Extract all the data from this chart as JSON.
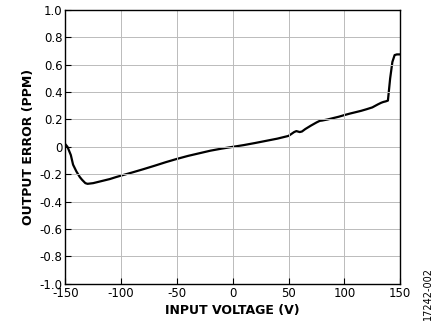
{
  "x": [
    -150,
    -148,
    -145,
    -143,
    -140,
    -137,
    -135,
    -132,
    -130,
    -128,
    -125,
    -120,
    -115,
    -110,
    -105,
    -100,
    -90,
    -80,
    -70,
    -60,
    -50,
    -40,
    -30,
    -20,
    -10,
    0,
    10,
    20,
    30,
    40,
    50,
    55,
    57,
    60,
    62,
    65,
    70,
    75,
    78,
    80,
    85,
    90,
    95,
    100,
    105,
    110,
    115,
    120,
    125,
    130,
    133,
    135,
    137,
    139,
    141,
    143,
    145,
    147,
    149
  ],
  "y": [
    0.02,
    0.0,
    -0.06,
    -0.13,
    -0.18,
    -0.22,
    -0.24,
    -0.265,
    -0.27,
    -0.268,
    -0.265,
    -0.255,
    -0.245,
    -0.235,
    -0.222,
    -0.21,
    -0.187,
    -0.163,
    -0.138,
    -0.112,
    -0.088,
    -0.066,
    -0.047,
    -0.028,
    -0.013,
    0.0,
    0.013,
    0.028,
    0.044,
    0.06,
    0.08,
    0.108,
    0.115,
    0.108,
    0.112,
    0.13,
    0.155,
    0.178,
    0.19,
    0.192,
    0.2,
    0.21,
    0.22,
    0.232,
    0.243,
    0.253,
    0.263,
    0.275,
    0.288,
    0.31,
    0.322,
    0.328,
    0.332,
    0.338,
    0.5,
    0.62,
    0.67,
    0.675,
    0.675
  ],
  "xlim": [
    -150,
    150
  ],
  "ylim": [
    -1.0,
    1.0
  ],
  "xticks": [
    -150,
    -100,
    -50,
    0,
    50,
    100,
    150
  ],
  "yticks": [
    -1.0,
    -0.8,
    -0.6,
    -0.4,
    -0.2,
    0,
    0.2,
    0.4,
    0.6,
    0.8,
    1.0
  ],
  "xlabel": "INPUT VOLTAGE (V)",
  "ylabel": "OUTPUT ERROR (PPM)",
  "line_color": "#000000",
  "line_width": 1.6,
  "grid_color": "#bbbbbb",
  "background_color": "#ffffff",
  "fig_label": "17242-002",
  "tick_fontsize": 8.5,
  "label_fontsize": 9
}
